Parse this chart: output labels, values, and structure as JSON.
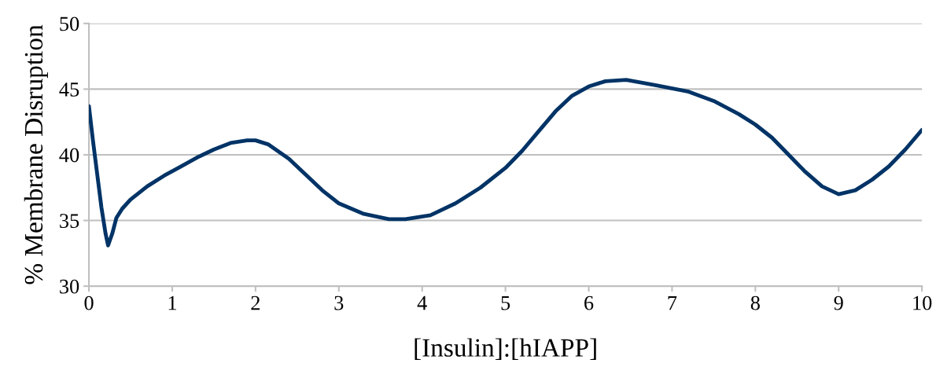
{
  "chart_data": {
    "type": "line",
    "xlabel": "[Insulin]:[hIAPP]",
    "ylabel": "% Membrane Disruption",
    "xlim": [
      0,
      10
    ],
    "xticks": [
      0,
      1,
      2,
      3,
      4,
      5,
      6,
      7,
      8,
      9,
      10
    ],
    "ylim": [
      30,
      50
    ],
    "yticks": [
      30,
      35,
      40,
      45,
      50
    ],
    "grid": "y",
    "marker": "none",
    "line_style": "solid",
    "series": [
      {
        "color": "#003366",
        "x": [
          0,
          0.05,
          0.1,
          0.15,
          0.2,
          0.23,
          0.28,
          0.33,
          0.4,
          0.5,
          0.7,
          0.9,
          1.1,
          1.3,
          1.5,
          1.7,
          1.9,
          2.0,
          2.15,
          2.4,
          2.6,
          2.8,
          3.0,
          3.3,
          3.6,
          3.8,
          4.1,
          4.4,
          4.7,
          5.0,
          5.2,
          5.4,
          5.6,
          5.8,
          6.0,
          6.2,
          6.45,
          6.8,
          7.2,
          7.5,
          7.8,
          8.0,
          8.2,
          8.4,
          8.6,
          8.8,
          9.0,
          9.2,
          9.4,
          9.6,
          9.8,
          10
        ],
        "values": [
          43.7,
          41,
          38.5,
          36,
          34,
          33.1,
          34,
          35.2,
          35.9,
          36.6,
          37.6,
          38.4,
          39.1,
          39.8,
          40.4,
          40.9,
          41.1,
          41.1,
          40.8,
          39.7,
          38.5,
          37.3,
          36.3,
          35.5,
          35.1,
          35.1,
          35.4,
          36.3,
          37.5,
          39.0,
          40.3,
          41.8,
          43.3,
          44.5,
          45.2,
          45.6,
          45.7,
          45.3,
          44.8,
          44.1,
          43.1,
          42.3,
          41.3,
          40.0,
          38.7,
          37.6,
          37.0,
          37.3,
          38.1,
          39.1,
          40.4,
          41.9
        ]
      }
    ]
  }
}
